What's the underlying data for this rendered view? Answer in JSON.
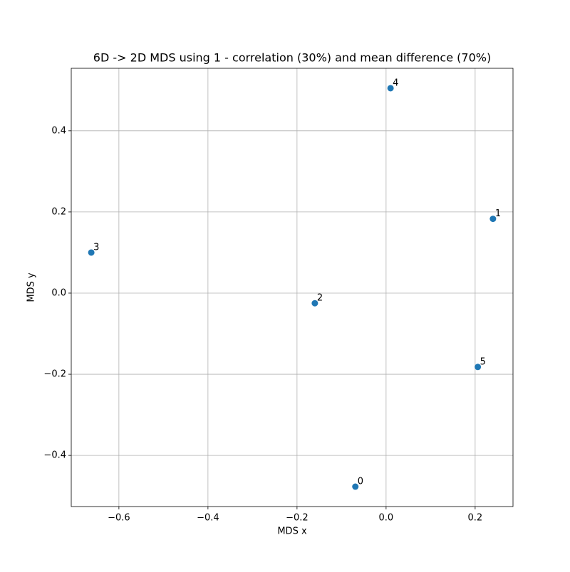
{
  "chart_data": {
    "type": "scatter",
    "title": "6D -> 2D MDS using 1 - correlation (30%) and mean difference (70%)",
    "xlabel": "MDS x",
    "ylabel": "MDS y",
    "x": [
      -0.069,
      0.24,
      -0.16,
      -0.662,
      0.01,
      0.206
    ],
    "y": [
      -0.477,
      0.183,
      -0.025,
      0.1,
      0.505,
      -0.182
    ],
    "labels": [
      "0",
      "1",
      "2",
      "3",
      "4",
      "5"
    ],
    "color": "#1f77b4",
    "xlim": [
      -0.707,
      0.285
    ],
    "ylim": [
      -0.526,
      0.554
    ],
    "xticks": [
      {
        "value": -0.6,
        "label": "−0.6"
      },
      {
        "value": -0.4,
        "label": "−0.4"
      },
      {
        "value": -0.2,
        "label": "−0.2"
      },
      {
        "value": 0,
        "label": "0.0"
      },
      0.2
    ],
    "yticks": [
      {
        "value": -0.4,
        "label": "−0.4"
      },
      {
        "value": -0.2,
        "label": "−0.2"
      },
      {
        "value": 0,
        "label": "0.0"
      },
      0.2,
      0.4
    ],
    "grid": true
  }
}
